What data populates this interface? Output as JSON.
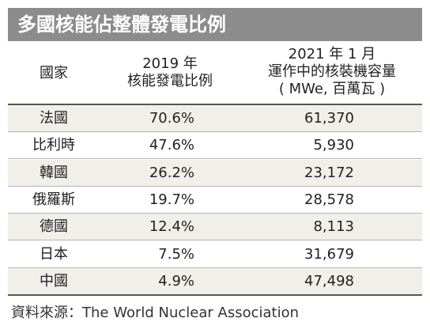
{
  "title": "多國核能佔整體發電比例",
  "table": {
    "header": [
      [
        "國家"
      ],
      [
        "2019 年",
        "核能發電比例"
      ],
      [
        "2021 年 1 月",
        "運作中的核裝機容量",
        "( MWe, 百萬瓦 )"
      ]
    ],
    "rows": [
      [
        "法國",
        "70.6%",
        "61,370"
      ],
      [
        "比利時",
        "47.6%",
        "5,930"
      ],
      [
        "韓國",
        "26.2%",
        "23,172"
      ],
      [
        "俄羅斯",
        "19.7%",
        "28,578"
      ],
      [
        "德國",
        "12.4%",
        "8,113"
      ],
      [
        "日本",
        "7.5%",
        "31,679"
      ],
      [
        "中國",
        "4.9%",
        "47,498"
      ]
    ]
  },
  "source": "資料來源：The World Nuclear Association"
}
